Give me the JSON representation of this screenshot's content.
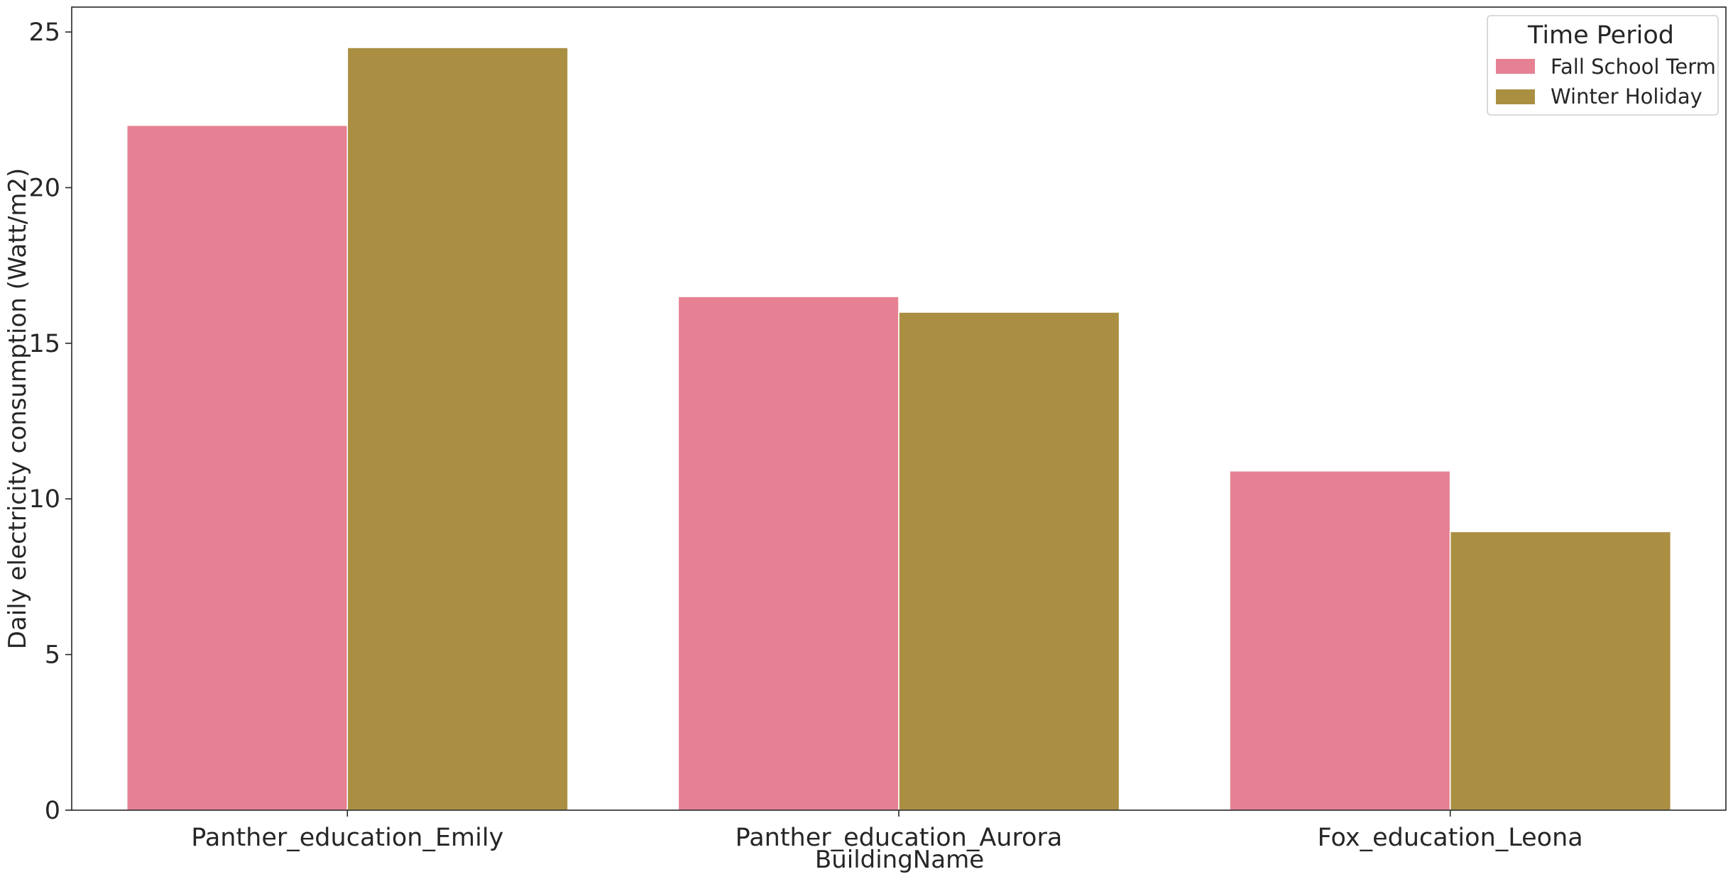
{
  "chart_data": {
    "type": "bar",
    "title": "",
    "xlabel": "BuildingName",
    "ylabel": "Daily electricity consumption (Watt/m2)",
    "categories": [
      "Panther_education_Emily",
      "Panther_education_Aurora",
      "Fox_education_Leona"
    ],
    "series": [
      {
        "name": "Fall School Term",
        "color": "#e68193",
        "values": [
          22.0,
          16.5,
          10.9
        ]
      },
      {
        "name": "Winter Holiday",
        "color": "#aa8f43",
        "values": [
          24.5,
          16.0,
          8.95
        ]
      }
    ],
    "ylim": [
      0,
      25.8
    ],
    "yticks": [
      0,
      5,
      10,
      15,
      20,
      25
    ],
    "grid": false,
    "legend": {
      "title": "Time Period",
      "position": "top-right"
    }
  }
}
